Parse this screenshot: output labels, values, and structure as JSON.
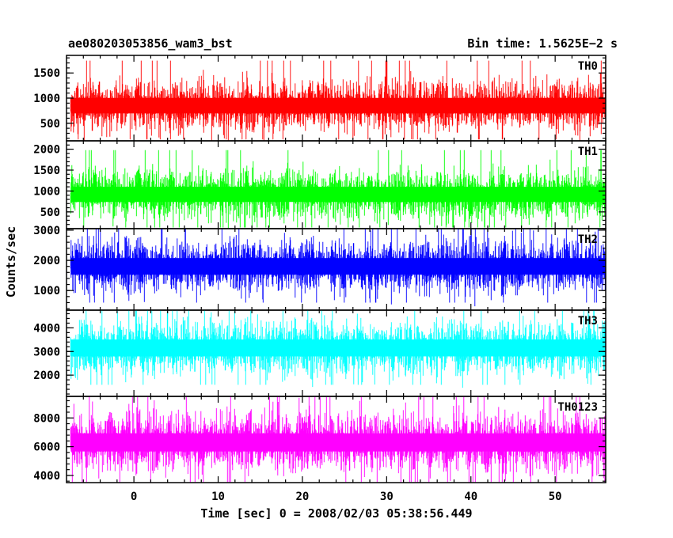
{
  "header": {
    "left_title": "ae080203053856_wam3_bst",
    "right_title": "Bin time: 1.5625E−2 s"
  },
  "axes": {
    "ylabel": "Counts/sec",
    "xlabel": "Time [sec] 0 = 2008/02/03 05:38:56.449"
  },
  "colors": {
    "TH0": "#ff0000",
    "TH1": "#00ff00",
    "TH2": "#0000ff",
    "TH3": "#00ffff",
    "TH0123": "#ff00ff"
  },
  "chart_data": {
    "type": "line",
    "title": "ae080203053856_wam3_bst",
    "subtitle": "Bin time: 1.5625E−2 s",
    "xlabel": "Time [sec] 0 = 2008/02/03 05:38:56.449",
    "ylabel": "Counts/sec",
    "xlim": [
      -8,
      56
    ],
    "x_start": -7.5,
    "x_end": 56,
    "x_ticks": [
      0,
      10,
      20,
      30,
      40,
      50
    ],
    "x_tick_labels": [
      "0",
      "10",
      "20",
      "30",
      "40",
      "50"
    ],
    "grid": false,
    "series": [
      {
        "name": "TH0",
        "ylim": [
          150,
          1850
        ],
        "y_ticks": [
          500,
          1000,
          1500
        ],
        "y_tick_labels": [
          "500",
          "1000",
          "1500"
        ],
        "center": 850,
        "spread": 280,
        "min_approx": 150,
        "max_approx": 1850,
        "peaks": [
          [
            0.5,
            1850
          ],
          [
            13.5,
            1650
          ],
          [
            20.8,
            1700
          ]
        ]
      },
      {
        "name": "TH1",
        "ylim": [
          100,
          2200
        ],
        "y_ticks": [
          500,
          1000,
          1500,
          2000
        ],
        "y_tick_labels": [
          "500",
          "1000",
          "1500",
          "2000"
        ],
        "center": 920,
        "spread": 330,
        "min_approx": 100,
        "max_approx": 2200,
        "peaks": [
          [
            0.5,
            2200
          ],
          [
            13.5,
            2150
          ],
          [
            20.8,
            2200
          ]
        ]
      },
      {
        "name": "TH2",
        "ylim": [
          350,
          3050
        ],
        "y_ticks": [
          1000,
          2000,
          3000
        ],
        "y_tick_labels": [
          "1000",
          "2000",
          "3000"
        ],
        "center": 1800,
        "spread": 500,
        "min_approx": 350,
        "max_approx": 3050,
        "peaks": [
          [
            0.5,
            3050
          ],
          [
            13.5,
            2900
          ],
          [
            20.8,
            3000
          ]
        ]
      },
      {
        "name": "TH3",
        "ylim": [
          1100,
          4750
        ],
        "y_ticks": [
          2000,
          3000,
          4000
        ],
        "y_tick_labels": [
          "2000",
          "3000",
          "4000"
        ],
        "center": 3150,
        "spread": 650,
        "min_approx": 1100,
        "max_approx": 4750,
        "peaks": [
          [
            0.5,
            4750
          ],
          [
            13.5,
            4600
          ],
          [
            20.8,
            4700
          ]
        ]
      },
      {
        "name": "TH0123",
        "ylim": [
          3500,
          9500
        ],
        "y_ticks": [
          4000,
          6000,
          8000
        ],
        "y_tick_labels": [
          "4000",
          "6000",
          "8000"
        ],
        "center": 6300,
        "spread": 1150,
        "min_approx": 3500,
        "max_approx": 9500,
        "peaks": [
          [
            0.5,
            9500
          ],
          [
            13.5,
            9100
          ],
          [
            20.8,
            9300
          ]
        ]
      }
    ]
  }
}
